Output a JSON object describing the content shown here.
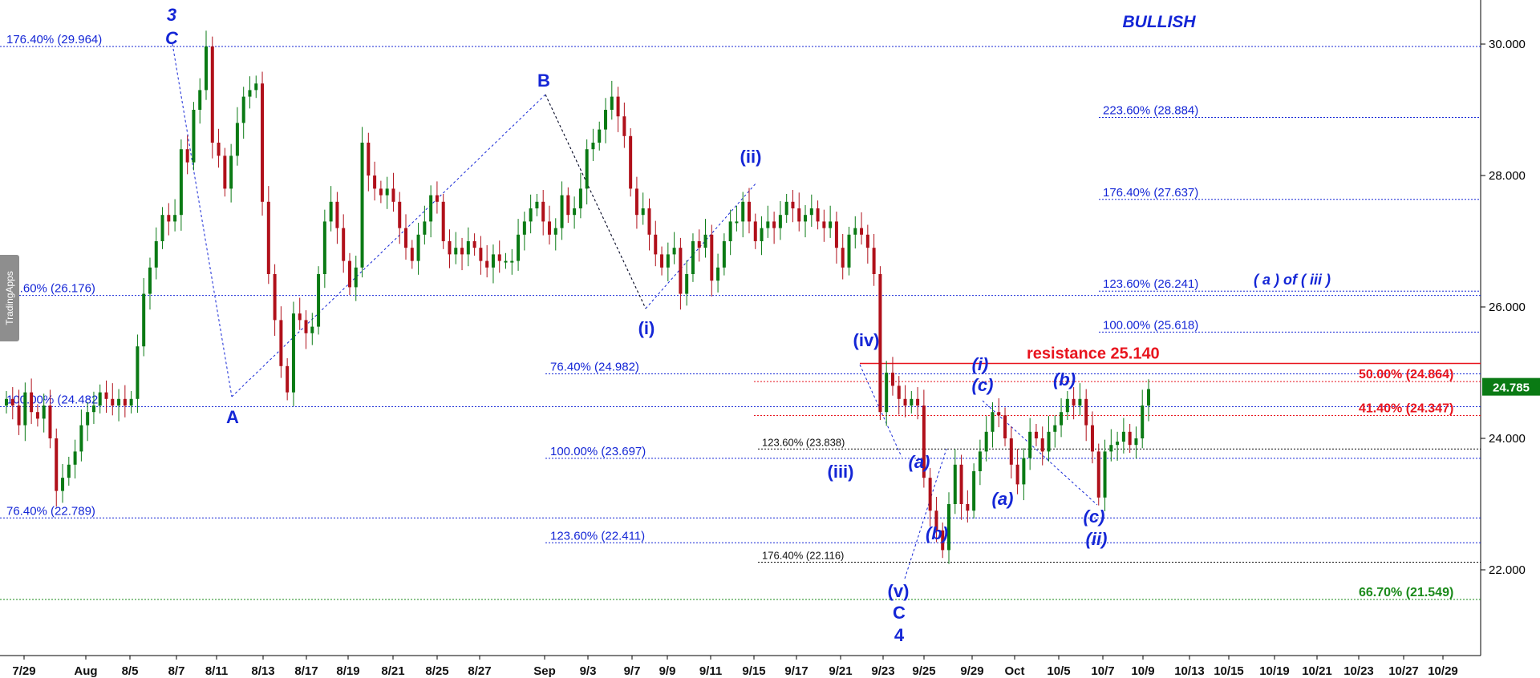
{
  "badge": "TradingApps",
  "chart_data": {
    "type": "candlestick",
    "title": "BULLISH",
    "ylim": [
      20.5,
      30.7
    ],
    "y_ticks": [
      "30.000",
      "28.000",
      "26.000",
      "24.000",
      "22.000"
    ],
    "x_ticks": [
      "7/29",
      "Aug",
      "8/5",
      "8/7",
      "8/11",
      "8/13",
      "8/17",
      "8/19",
      "8/21",
      "8/25",
      "8/27",
      "Sep",
      "9/3",
      "9/7",
      "9/9",
      "9/11",
      "9/15",
      "9/17",
      "9/21",
      "9/23",
      "9/25",
      "9/29",
      "Oct",
      "10/5",
      "10/7",
      "10/9",
      "10/13",
      "10/15",
      "10/19",
      "10/21",
      "10/23",
      "10/27",
      "10/29"
    ],
    "last_price": "24.785",
    "colors": {
      "up": "#0a7a14",
      "down": "#b0101a",
      "fib": "#1426d6",
      "wave": "#1426d6",
      "red": "#e8141e",
      "green": "#1a8a1a"
    },
    "path": [
      24.6,
      24.5,
      24.2,
      24.7,
      24.4,
      24.3,
      24.5,
      24.0,
      23.2,
      23.4,
      23.6,
      23.8,
      24.2,
      24.4,
      24.5,
      24.7,
      24.6,
      24.5,
      24.6,
      24.5,
      24.6,
      25.4,
      26.2,
      26.6,
      27.0,
      27.4,
      27.3,
      27.4,
      28.4,
      28.2,
      29.0,
      29.3,
      29.964,
      28.5,
      28.3,
      27.8,
      28.3,
      28.8,
      29.2,
      29.3,
      29.4,
      27.6,
      26.5,
      25.8,
      25.1,
      24.7,
      25.9,
      25.8,
      25.6,
      25.7,
      26.5,
      27.3,
      27.6,
      27.2,
      26.7,
      26.3,
      26.6,
      28.5,
      28.0,
      27.8,
      27.7,
      27.8,
      27.6,
      27.2,
      26.9,
      26.7,
      27.1,
      27.3,
      27.7,
      27.6,
      27.0,
      26.8,
      26.9,
      26.8,
      27.0,
      26.9,
      26.7,
      26.6,
      26.8,
      26.7,
      26.7,
      26.7,
      27.1,
      27.3,
      27.5,
      27.6,
      27.3,
      27.1,
      27.2,
      27.7,
      27.4,
      27.5,
      27.8,
      28.4,
      28.5,
      28.7,
      29.0,
      29.2,
      28.9,
      28.6,
      27.8,
      27.4,
      27.5,
      27.1,
      26.8,
      26.6,
      26.8,
      26.9,
      26.2,
      26.5,
      27.0,
      26.9,
      27.1,
      26.4,
      26.6,
      27.0,
      27.3,
      27.3,
      27.6,
      27.3,
      27.0,
      27.2,
      27.3,
      27.2,
      27.4,
      27.6,
      27.5,
      27.3,
      27.4,
      27.5,
      27.3,
      27.2,
      27.3,
      26.9,
      26.6,
      27.1,
      27.2,
      27.1,
      26.9,
      26.5,
      24.4,
      25.0,
      24.8,
      24.6,
      24.5,
      24.6,
      24.5,
      23.4,
      22.9,
      22.6,
      22.3,
      23.0,
      23.6,
      23.0,
      22.9,
      23.5,
      23.8,
      24.1,
      24.4,
      24.35,
      24.0,
      23.6,
      23.3,
      23.7,
      24.1,
      24.0,
      23.8,
      24.1,
      24.2,
      24.4,
      24.6,
      24.5,
      24.6,
      24.2,
      23.8,
      23.1,
      23.8,
      23.9,
      23.95,
      24.1,
      23.9,
      24.0,
      24.5,
      24.75
    ],
    "fib_levels": [
      {
        "label": "176.40% (29.964)",
        "value": 29.964,
        "color": "blue"
      },
      {
        "label": "223.60% (28.884)",
        "value": 28.884,
        "color": "blue"
      },
      {
        "label": "176.40% (27.637)",
        "value": 27.637,
        "color": "blue"
      },
      {
        "label": "123.60% (26.241)",
        "value": 26.241,
        "color": "blue"
      },
      {
        "label": "23.60% (26.176)",
        "value": 26.176,
        "color": "blue"
      },
      {
        "label": "100.00% (25.618)",
        "value": 25.618,
        "color": "blue"
      },
      {
        "label": "76.40% (24.982)",
        "value": 24.982,
        "color": "blue"
      },
      {
        "label": "50.00% (24.864)",
        "value": 24.864,
        "color": "red"
      },
      {
        "label": "100.00% (24.482)",
        "value": 24.482,
        "color": "blue"
      },
      {
        "label": "41.40% (24.347)",
        "value": 24.347,
        "color": "red"
      },
      {
        "label": "123.60% (23.838)",
        "value": 23.838,
        "color": "black"
      },
      {
        "label": "100.00% (23.697)",
        "value": 23.697,
        "color": "blue"
      },
      {
        "label": "76.40% (22.789)",
        "value": 22.789,
        "color": "blue"
      },
      {
        "label": "123.60% (22.411)",
        "value": 22.411,
        "color": "blue"
      },
      {
        "label": "176.40% (22.116)",
        "value": 22.116,
        "color": "black"
      },
      {
        "label": "66.70% (21.549)",
        "value": 21.549,
        "color": "green"
      }
    ],
    "resistance": {
      "label": "resistance 25.140",
      "value": 25.14
    },
    "wave_labels": [
      "3",
      "C",
      "A",
      "B",
      "(i)",
      "(ii)",
      "(iii)",
      "(iv)",
      "(v)",
      "C",
      "4",
      "(a)",
      "(b)",
      "(c)",
      "(i)",
      "(a)",
      "(b)",
      "(c)",
      "(ii)",
      "( a ) of ( iii )"
    ]
  }
}
